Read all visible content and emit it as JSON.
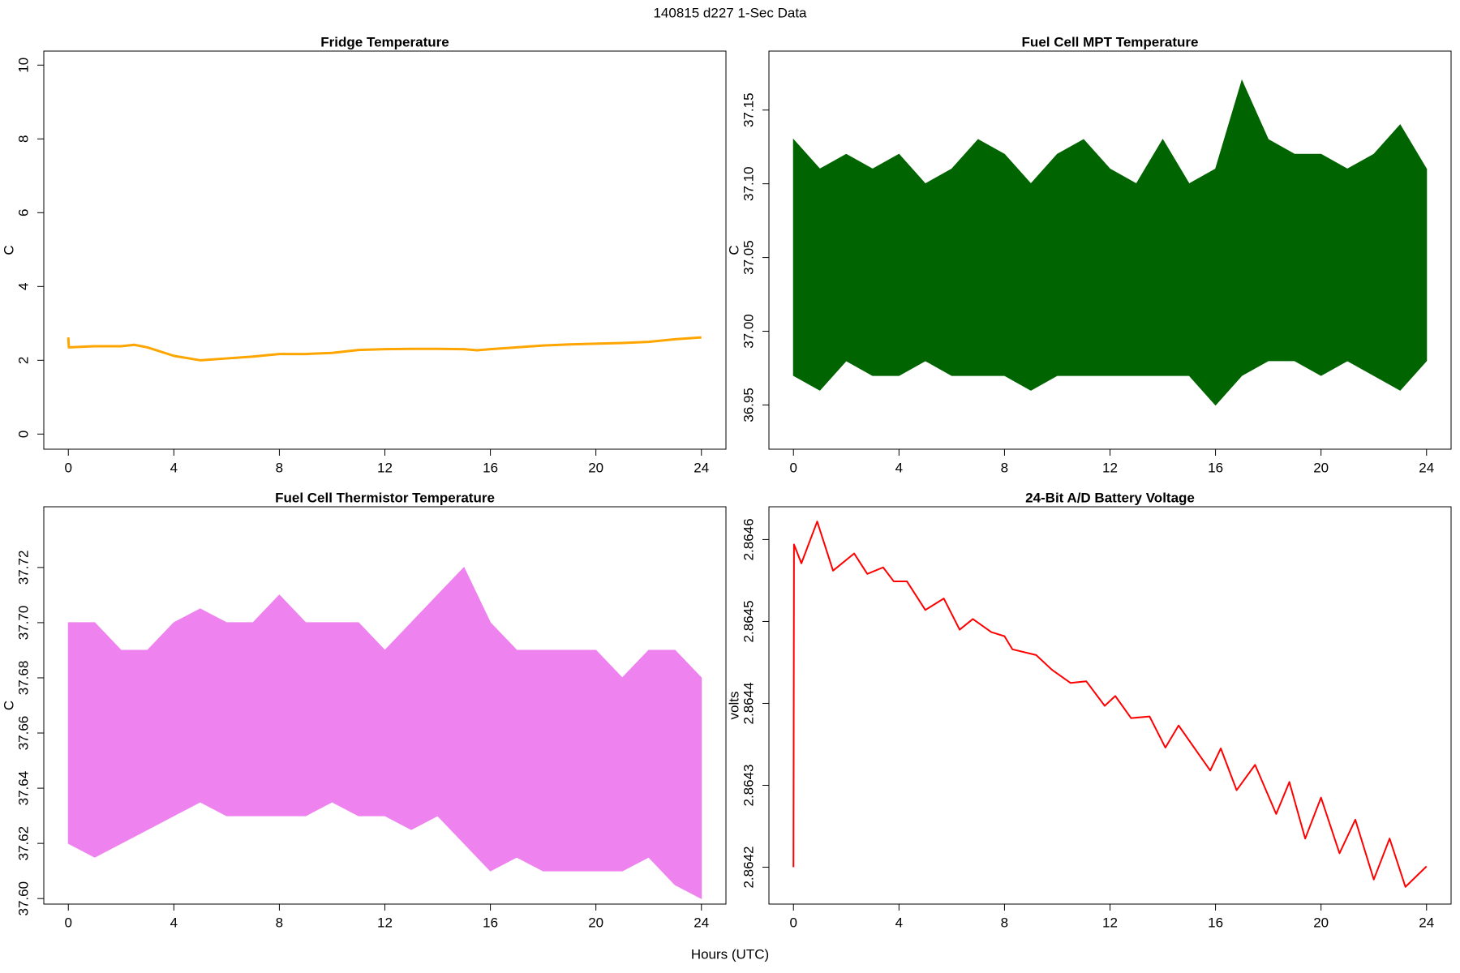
{
  "page_title": "140815   d227   1-Sec Data",
  "x_label": "Hours (UTC)",
  "chart_data": [
    {
      "type": "line",
      "title": "Fridge Temperature",
      "y_label": "C",
      "color": "#ffa500",
      "x": [
        0,
        0.02,
        1,
        2,
        2.5,
        3,
        4,
        5,
        6,
        7,
        8,
        9,
        10,
        11,
        12,
        13,
        14,
        15,
        15.5,
        16,
        17,
        18,
        19,
        20,
        21,
        22,
        23,
        24
      ],
      "values": [
        2.62,
        2.35,
        2.38,
        2.38,
        2.42,
        2.35,
        2.12,
        2.0,
        2.05,
        2.1,
        2.17,
        2.17,
        2.2,
        2.28,
        2.3,
        2.31,
        2.31,
        2.3,
        2.27,
        2.3,
        2.35,
        2.4,
        2.43,
        2.45,
        2.47,
        2.5,
        2.57,
        2.62
      ],
      "xlim": [
        -0.93,
        24.93
      ],
      "xticks": [
        0,
        4,
        8,
        12,
        16,
        20,
        24
      ],
      "ylim": [
        -0.41,
        10.38
      ],
      "yticks": [
        0,
        2,
        4,
        6,
        8,
        10
      ]
    },
    {
      "type": "band",
      "title": "Fuel Cell MPT Temperature",
      "y_label": "C",
      "color": "#006400",
      "x": [
        0,
        1,
        2,
        3,
        4,
        5,
        6,
        7,
        8,
        9,
        10,
        11,
        12,
        13,
        14,
        15,
        16,
        17,
        18,
        19,
        20,
        21,
        22,
        23,
        24
      ],
      "y_high": [
        37.13,
        37.11,
        37.12,
        37.11,
        37.12,
        37.1,
        37.11,
        37.13,
        37.12,
        37.1,
        37.12,
        37.13,
        37.11,
        37.1,
        37.13,
        37.1,
        37.11,
        37.17,
        37.13,
        37.12,
        37.12,
        37.11,
        37.12,
        37.14,
        37.11
      ],
      "y_low": [
        36.97,
        36.96,
        36.98,
        36.97,
        36.97,
        36.98,
        36.97,
        36.97,
        36.97,
        36.96,
        36.97,
        36.97,
        36.97,
        36.97,
        36.97,
        36.97,
        36.95,
        36.97,
        36.98,
        36.98,
        36.97,
        36.98,
        36.97,
        36.96,
        36.98
      ],
      "xlim": [
        -0.93,
        24.93
      ],
      "xticks": [
        0,
        4,
        8,
        12,
        16,
        20,
        24
      ],
      "ylim": [
        36.92,
        37.19
      ],
      "yticks": [
        36.95,
        {
          "value": 37,
          "label": "37.00"
        },
        37.05,
        {
          "value": 37.1,
          "label": "37.10"
        },
        37.15
      ]
    },
    {
      "type": "band",
      "title": "Fuel Cell Thermistor Temperature",
      "y_label": "C",
      "color": "#ee82ee",
      "x": [
        0,
        1,
        2,
        3,
        4,
        5,
        6,
        7,
        8,
        9,
        10,
        11,
        12,
        13,
        14,
        15,
        16,
        17,
        18,
        19,
        20,
        21,
        22,
        23,
        24
      ],
      "y_high": [
        37.7,
        37.7,
        37.69,
        37.69,
        37.7,
        37.705,
        37.7,
        37.7,
        37.71,
        37.7,
        37.7,
        37.7,
        37.69,
        37.7,
        37.71,
        37.72,
        37.7,
        37.69,
        37.69,
        37.69,
        37.69,
        37.68,
        37.69,
        37.69,
        37.68
      ],
      "y_low": [
        37.62,
        37.615,
        37.62,
        37.625,
        37.63,
        37.635,
        37.63,
        37.63,
        37.63,
        37.63,
        37.635,
        37.63,
        37.63,
        37.625,
        37.63,
        37.62,
        37.61,
        37.615,
        37.61,
        37.61,
        37.61,
        37.61,
        37.615,
        37.605,
        37.6
      ],
      "xlim": [
        -0.93,
        24.93
      ],
      "xticks": [
        0,
        4,
        8,
        12,
        16,
        20,
        24
      ],
      "ylim": [
        37.598,
        37.742
      ],
      "yticks": [
        {
          "value": 37.6,
          "label": "37.60"
        },
        37.62,
        37.64,
        37.66,
        37.68,
        {
          "value": 37.7,
          "label": "37.70"
        },
        37.72
      ]
    },
    {
      "type": "line",
      "title": "24-Bit A/D Battery Voltage",
      "y_label": "volts",
      "color": "#ff0000",
      "x": [
        0,
        0.02,
        0.3,
        0.9,
        1.5,
        2.3,
        2.8,
        3.4,
        3.8,
        4.3,
        5,
        5.7,
        6.3,
        6.8,
        7.5,
        8,
        8.3,
        9.2,
        9.8,
        10.5,
        11.1,
        11.8,
        12.2,
        12.8,
        13.5,
        14.1,
        14.6,
        15.8,
        16.2,
        16.8,
        17.5,
        18.3,
        18.8,
        19.4,
        20,
        20.7,
        21.3,
        22,
        22.6,
        23.2,
        24
      ],
      "values": [
        2.8642,
        2.864594,
        2.864571,
        2.864622,
        2.864562,
        2.864583,
        2.864558,
        2.864566,
        2.864549,
        2.864549,
        2.864514,
        2.864528,
        2.86449,
        2.864503,
        2.864487,
        2.864482,
        2.864466,
        2.864459,
        2.864441,
        2.864425,
        2.864427,
        2.864397,
        2.864409,
        2.864382,
        2.864384,
        2.864346,
        2.864373,
        2.864318,
        2.864345,
        2.864294,
        2.864325,
        2.864265,
        2.864304,
        2.864235,
        2.864285,
        2.864217,
        2.864258,
        2.864185,
        2.864235,
        2.864176,
        2.864201
      ],
      "xlim": [
        -0.93,
        24.93
      ],
      "xticks": [
        0,
        4,
        8,
        12,
        16,
        20,
        24
      ],
      "ylim": [
        2.864155,
        2.86464
      ],
      "yticks": [
        2.8642,
        2.8643,
        2.8644,
        2.8645,
        2.8646
      ]
    }
  ]
}
